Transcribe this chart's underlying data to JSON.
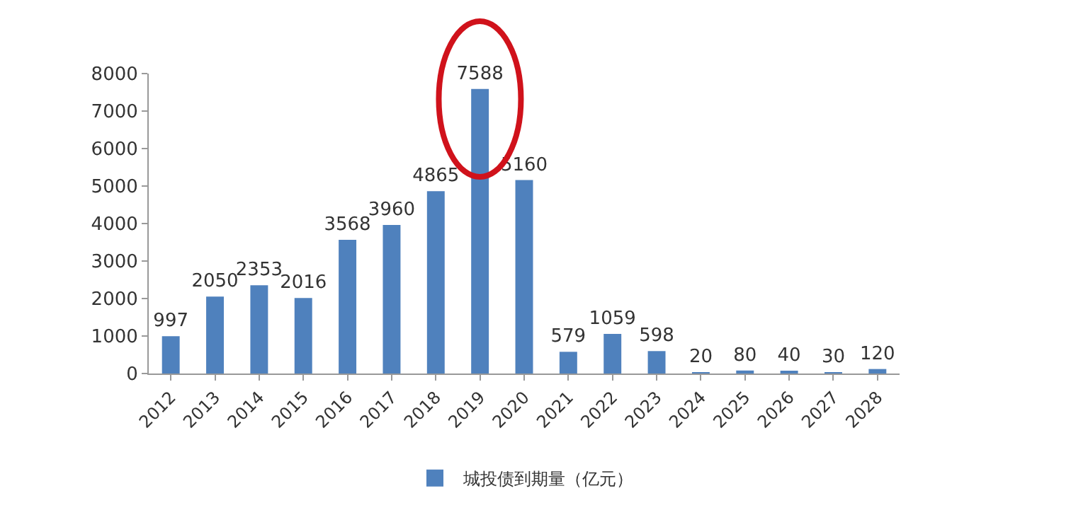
{
  "chart_data": {
    "type": "bar",
    "categories": [
      "2012",
      "2013",
      "2014",
      "2015",
      "2016",
      "2017",
      "2018",
      "2019",
      "2020",
      "2021",
      "2022",
      "2023",
      "2024",
      "2025",
      "2026",
      "2027",
      "2028"
    ],
    "series": [
      {
        "name": "城投债到期量（亿元）",
        "color": "#4f81bd",
        "values": [
          997,
          2050,
          2353,
          2016,
          3568,
          3960,
          4865,
          7588,
          5160,
          579,
          1059,
          598,
          20,
          80,
          40,
          30,
          120
        ]
      }
    ],
    "ylim": [
      0,
      8000
    ],
    "yticks": [
      0,
      1000,
      2000,
      3000,
      4000,
      5000,
      6000,
      7000,
      8000
    ],
    "grid": false,
    "legend": "bottom",
    "data_labels": true
  }
}
